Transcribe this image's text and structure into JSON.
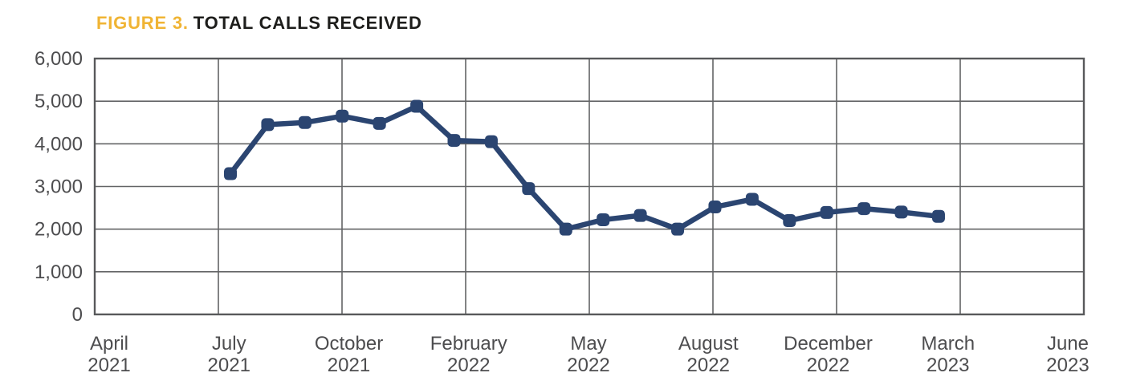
{
  "title": {
    "figure_label": "FIGURE 3.",
    "text": "TOTAL CALLS RECEIVED"
  },
  "colors": {
    "accent_gold": "#F0B434",
    "title_black": "#1D1D1B",
    "line_navy": "#2B4571",
    "grid_gray": "#636466",
    "border_gray": "#58595B",
    "axis_text_gray": "#4D4D4F",
    "background": "#FFFFFF"
  },
  "chart_data": {
    "type": "line",
    "title": "TOTAL CALLS RECEIVED",
    "legend": "none",
    "grid": "horizontal and vertical gridlines on, boxed plot area",
    "marker": "rounded-square",
    "ylim": [
      0,
      6000
    ],
    "y_major_unit": 1000,
    "y_tick_labels": [
      "0",
      "1,000",
      "2,000",
      "3,000",
      "4,000",
      "5,000",
      "6,000"
    ],
    "x_tick_labels": [
      {
        "month": "April",
        "year": "2021"
      },
      {
        "month": "July",
        "year": "2021"
      },
      {
        "month": "October",
        "year": "2021"
      },
      {
        "month": "February",
        "year": "2022"
      },
      {
        "month": "May",
        "year": "2022"
      },
      {
        "month": "August",
        "year": "2022"
      },
      {
        "month": "December",
        "year": "2022"
      },
      {
        "month": "March",
        "year": "2023"
      },
      {
        "month": "June",
        "year": "2023"
      }
    ],
    "x_axis_span": [
      "April 2021",
      "June 2023"
    ],
    "x": [
      "Jul 2021",
      "Aug 2021",
      "Sep 2021",
      "Oct 2021",
      "Nov 2021",
      "Dec 2021",
      "Jan 2022",
      "Feb 2022",
      "Mar 2022",
      "Apr 2022",
      "May 2022",
      "Jun 2022",
      "Jul 2022",
      "Aug 2022",
      "Sep 2022",
      "Oct 2022",
      "Nov 2022",
      "Dec 2022",
      "Jan 2023",
      "Feb 2023"
    ],
    "series": [
      {
        "name": "Total calls received",
        "values": [
          3300,
          4450,
          4500,
          4650,
          4480,
          4880,
          4080,
          4050,
          2950,
          2000,
          2220,
          2320,
          2000,
          2520,
          2700,
          2200,
          2390,
          2480,
          2400,
          2300
        ]
      }
    ]
  }
}
